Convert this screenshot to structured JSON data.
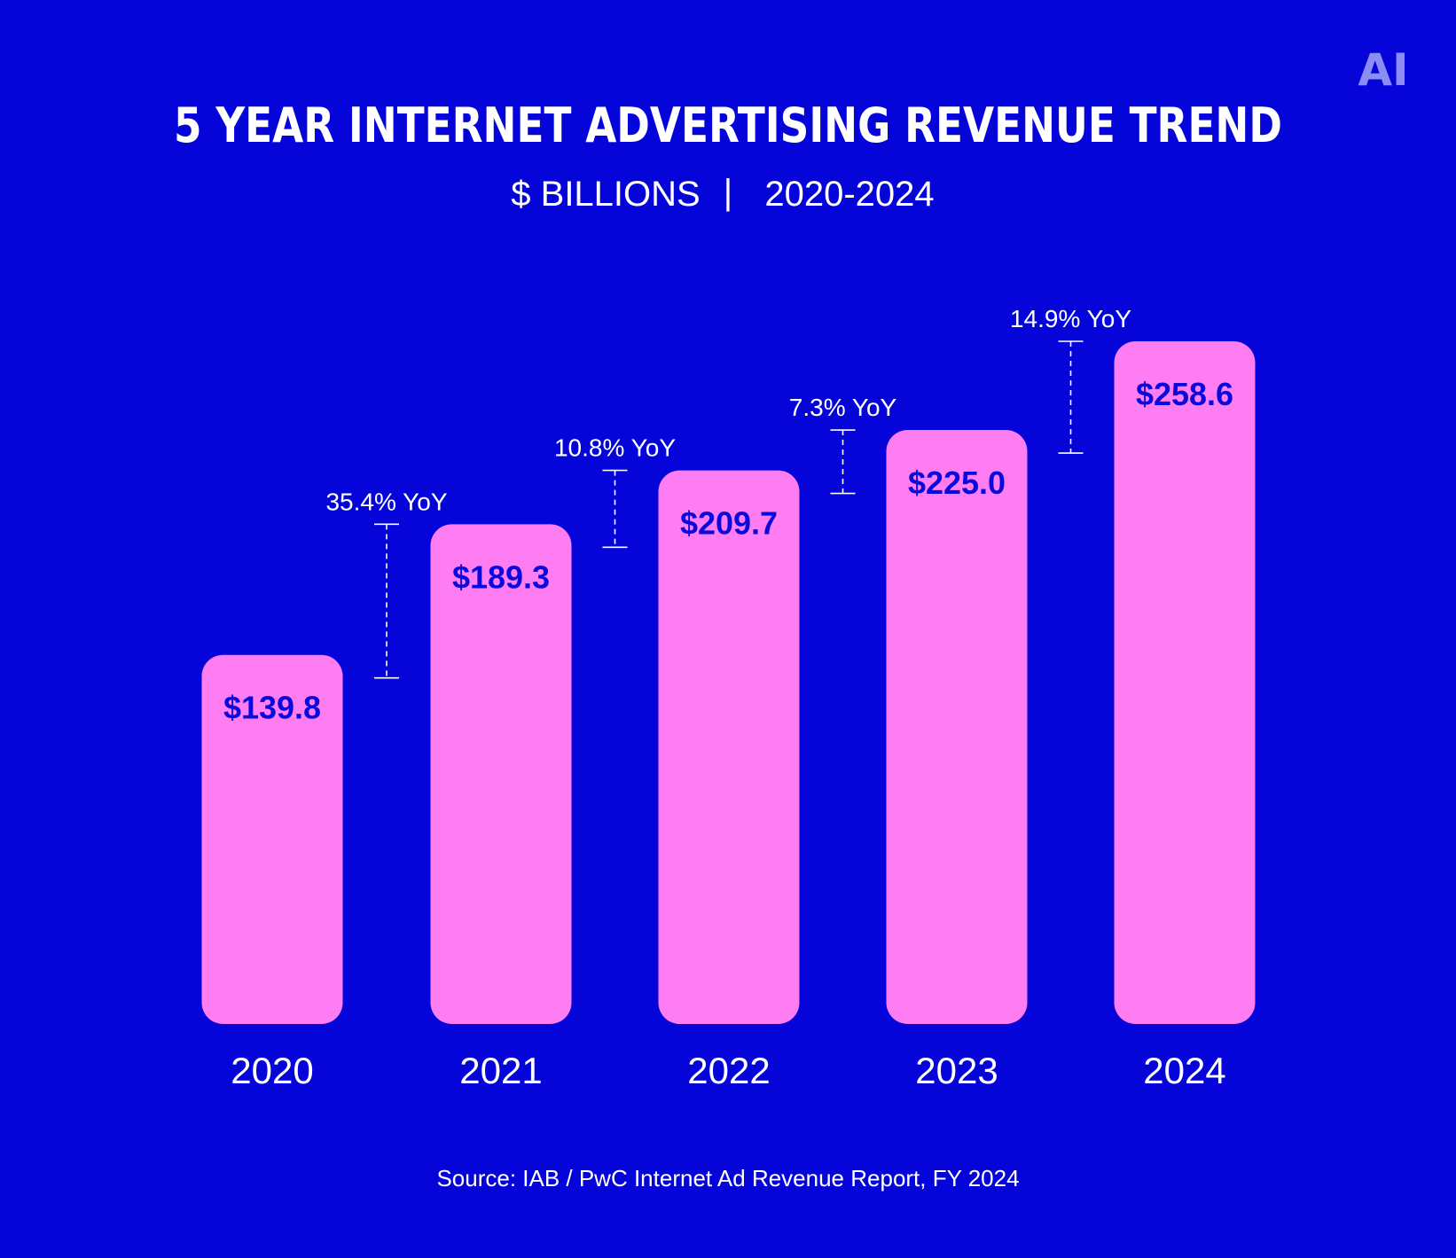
{
  "logo": {
    "text": "AI",
    "color": "#8C8CF5"
  },
  "colors": {
    "background": "#0505DA",
    "bar": "#FF7DF2",
    "bar_label": "#0A0ADC",
    "text": "#FFFFFF"
  },
  "chart_data": {
    "type": "bar",
    "title": "5 YEAR INTERNET ADVERTISING REVENUE TREND",
    "subtitle_units": "$ BILLIONS",
    "subtitle_separator": "|",
    "subtitle_range": "2020-2024",
    "categories": [
      "2020",
      "2021",
      "2022",
      "2023",
      "2024"
    ],
    "values": [
      139.8,
      189.3,
      209.7,
      225.0,
      258.6
    ],
    "value_labels": [
      "$139.8",
      "$189.3",
      "$209.7",
      "$225.0",
      "$258.6"
    ],
    "yoy": [
      {
        "from": "2020",
        "to": "2021",
        "label": "35.4% YoY"
      },
      {
        "from": "2021",
        "to": "2022",
        "label": "10.8% YoY"
      },
      {
        "from": "2022",
        "to": "2023",
        "label": "7.3% YoY"
      },
      {
        "from": "2023",
        "to": "2024",
        "label": "14.9% YoY"
      }
    ],
    "ylim": [
      0,
      258.6
    ],
    "grid": false,
    "legend": "none",
    "source": "Source: IAB / PwC Internet Ad Revenue Report, FY 2024"
  }
}
